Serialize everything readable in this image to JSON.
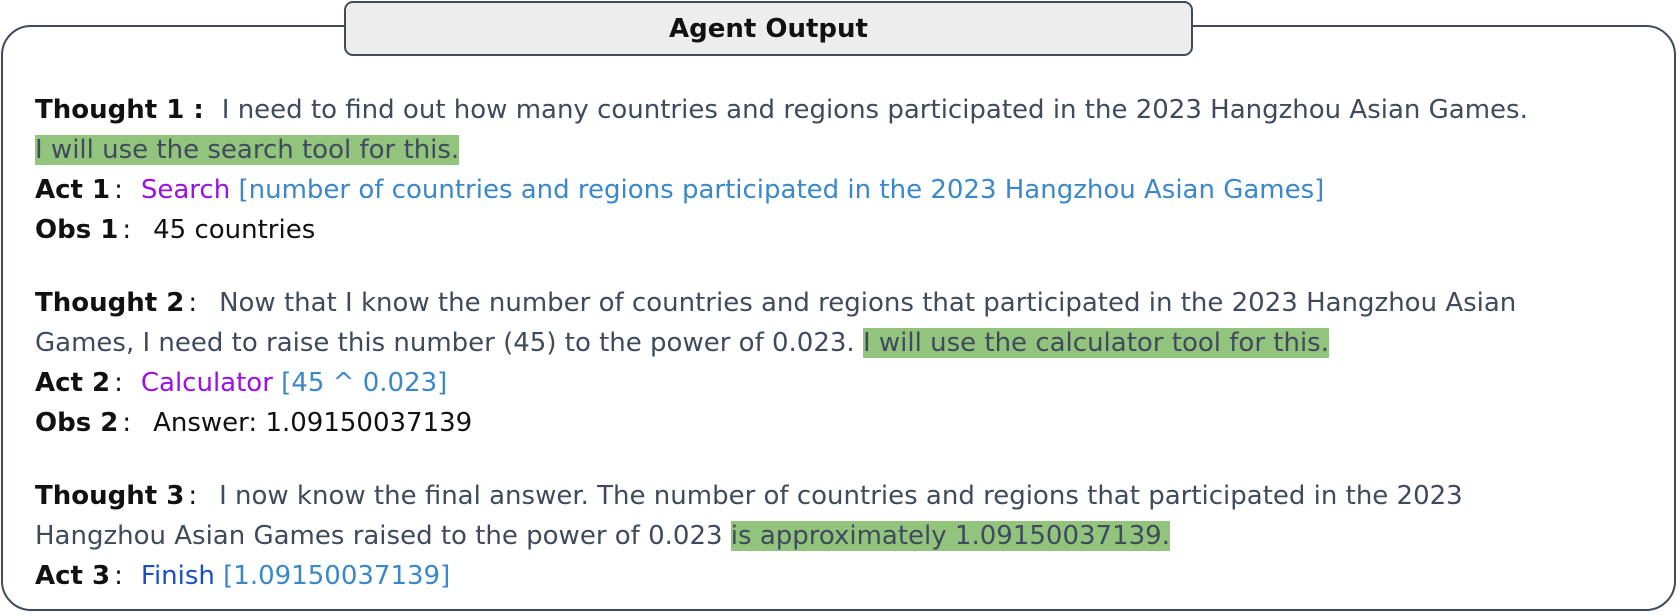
{
  "header": {
    "title": "Agent Output"
  },
  "steps": [
    {
      "thought_label": "Thought 1 :",
      "thought_pre": "I need to find out how many countries and regions participated in the 2023 Hangzhou Asian Games.",
      "thought_highlight": "I will use the search tool for this.",
      "act_label": "Act  1",
      "act_sep": ":",
      "tool": "Search",
      "arg": "[number of countries and regions participated in the 2023 Hangzhou Asian Games]",
      "obs_label": "Obs 1",
      "obs_sep": ":",
      "obs": "45 countries"
    },
    {
      "thought_label": "Thought 2",
      "thought_sep": ":",
      "thought_pre_line1": "Now that I know the number of countries and regions that participated in the 2023 Hangzhou Asian",
      "thought_pre_line2": "Games, I need to raise this number (45) to the power of 0.023.",
      "thought_highlight": "I will use the calculator tool for this.",
      "act_label": "Act  2",
      "act_sep": ":",
      "tool": "Calculator",
      "arg": "[45 ^ 0.023]",
      "obs_label": "Obs 2",
      "obs_sep": ":",
      "obs": "Answer: 1.09150037139"
    },
    {
      "thought_label": "Thought 3",
      "thought_sep": ":",
      "thought_pre_line1": "I now know the final answer.  The number of countries and regions that participated in the 2023",
      "thought_pre_line2": "Hangzhou Asian Games raised to the power of 0.023",
      "thought_highlight": "is approximately 1.09150037139.",
      "act_label": "Act 3",
      "act_sep": ":",
      "tool": "Finish",
      "arg": "[1.09150037139]"
    }
  ],
  "colors": {
    "label": "#111111",
    "thought_text": "#3f4b5c",
    "tool": "#9b10e8",
    "finish_tool": "#1a4fc8",
    "argument": "#3a87c9",
    "highlight": "#93c47d",
    "frame_border": "#3f4b5c",
    "title_fill": "#ededed"
  }
}
